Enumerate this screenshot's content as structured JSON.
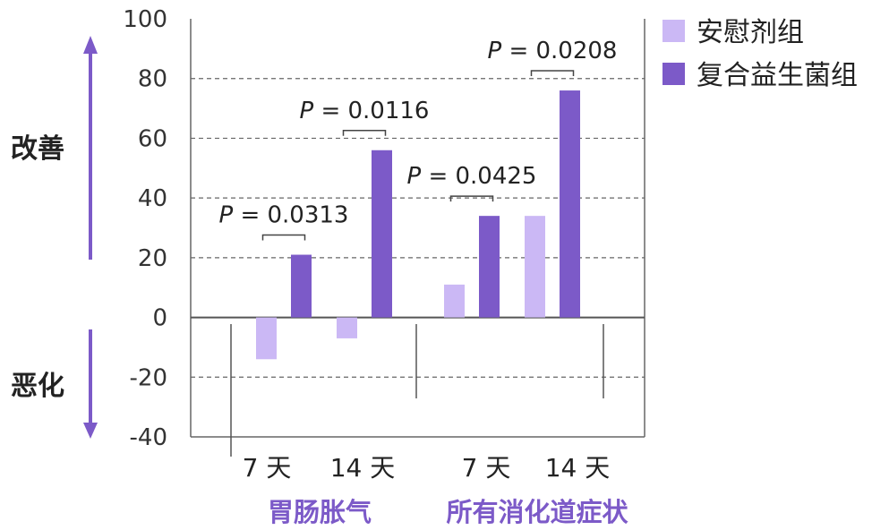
{
  "chart_data": {
    "type": "bar",
    "categories": [
      "7 天",
      "14 天",
      "7 天",
      "14 天"
    ],
    "groups": [
      {
        "label": "胃肠胀气",
        "categories": [
          "7 天",
          "14 天"
        ]
      },
      {
        "label": "所有消化道症状",
        "categories": [
          "7 天",
          "14 天"
        ]
      }
    ],
    "series": [
      {
        "name": "安慰剂组",
        "color": "#cbb8f5",
        "values": [
          -14,
          -7,
          11,
          34
        ]
      },
      {
        "name": "复合益生菌组",
        "color": "#7c5ac8",
        "values": [
          21,
          56,
          34,
          76
        ]
      }
    ],
    "p_values": [
      "P = 0.0313",
      "P = 0.0116",
      "P = 0.0425",
      "P = 0.0208"
    ],
    "ylim": [
      -40,
      100
    ],
    "yticks": [
      "100",
      "80",
      "60",
      "40",
      "20",
      "0",
      "-20",
      "-40"
    ],
    "side_labels": {
      "improve": "改善",
      "worsen": "恶化"
    },
    "grid": true,
    "legend_position": "top-right"
  }
}
